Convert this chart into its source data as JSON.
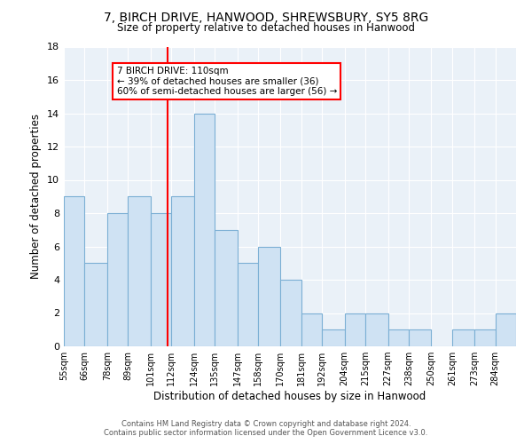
{
  "title1": "7, BIRCH DRIVE, HANWOOD, SHREWSBURY, SY5 8RG",
  "title2": "Size of property relative to detached houses in Hanwood",
  "xlabel": "Distribution of detached houses by size in Hanwood",
  "ylabel": "Number of detached properties",
  "bins": [
    55,
    66,
    78,
    89,
    101,
    112,
    124,
    135,
    147,
    158,
    170,
    181,
    192,
    204,
    215,
    227,
    238,
    250,
    261,
    273,
    284
  ],
  "counts": [
    9,
    5,
    8,
    9,
    8,
    9,
    14,
    7,
    5,
    6,
    4,
    2,
    1,
    2,
    2,
    1,
    1,
    0,
    1,
    1,
    2
  ],
  "bar_color": "#cfe2f3",
  "bar_edge_color": "#7bafd4",
  "vline_x": 110,
  "vline_color": "red",
  "annotation_line1": "7 BIRCH DRIVE: 110sqm",
  "annotation_line2": "← 39% of detached houses are smaller (36)",
  "annotation_line3": "60% of semi-detached houses are larger (56) →",
  "annotation_box_color": "white",
  "annotation_box_edge": "red",
  "ylim": [
    0,
    18
  ],
  "yticks": [
    0,
    2,
    4,
    6,
    8,
    10,
    12,
    14,
    16,
    18
  ],
  "footer1": "Contains HM Land Registry data © Crown copyright and database right 2024.",
  "footer2": "Contains public sector information licensed under the Open Government Licence v3.0.",
  "bg_color": "#eaf1f8"
}
